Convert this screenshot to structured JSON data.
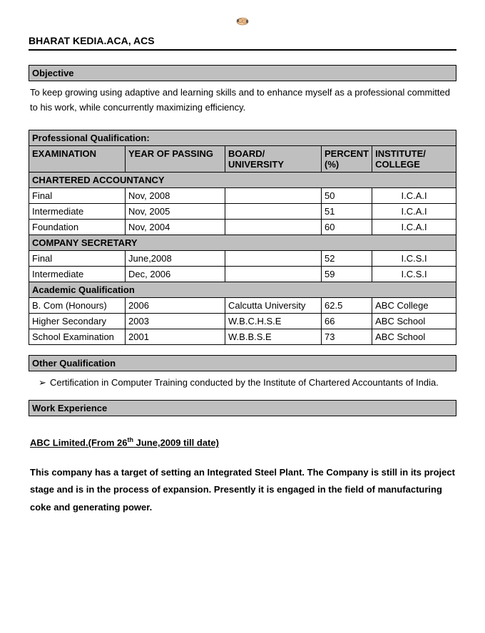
{
  "name": "BHARAT KEDIA.ACA, ACS",
  "sections": {
    "objective_label": "Objective",
    "objective_text": "To keep growing using adaptive and learning skills and to enhance myself as a professional committed to his work, while concurrently maximizing efficiency.",
    "prof_qual_label": "Professional Qualification:",
    "headers": {
      "exam": "EXAMINATION",
      "year": "YEAR OF PASSING",
      "board": "BOARD/ UNIVERSITY",
      "percent": "PERCENT (%)",
      "institute": "INSTITUTE/ COLLEGE"
    },
    "group_ca": "CHARTERED ACCOUNTANCY",
    "ca_rows": [
      {
        "exam": "Final",
        "year": "Nov, 2008",
        "board": "",
        "pct": "50",
        "inst": "I.C.A.I"
      },
      {
        "exam": "Intermediate",
        "year": "Nov, 2005",
        "board": "",
        "pct": "51",
        "inst": "I.C.A.I"
      },
      {
        "exam": "Foundation",
        "year": "Nov, 2004",
        "board": "",
        "pct": "60",
        "inst": "I.C.A.I"
      }
    ],
    "group_cs": "COMPANY SECRETARY",
    "cs_rows": [
      {
        "exam": "Final",
        "year": "June,2008",
        "board": "",
        "pct": "52",
        "inst": "I.C.S.I"
      },
      {
        "exam": "Intermediate",
        "year": "Dec, 2006",
        "board": "",
        "pct": "59",
        "inst": "I.C.S.I"
      }
    ],
    "group_ac": "Academic Qualification",
    "ac_rows": [
      {
        "exam": "B. Com (Honours)",
        "year": "2006",
        "board": "Calcutta University",
        "pct": "62.5",
        "inst": "ABC College"
      },
      {
        "exam": "Higher Secondary",
        "year": "2003",
        "board": "W.B.C.H.S.E",
        "pct": "66",
        "inst": "ABC School"
      },
      {
        "exam": "School Examination",
        "year": "2001",
        "board": "W.B.B.S.E",
        "pct": "73",
        "inst": "ABC School"
      }
    ],
    "other_qual_label": "Other Qualification",
    "other_qual_bullet": "Certification in Computer Training conducted by the Institute of Chartered Accountants of India.",
    "work_exp_label": "Work Experience",
    "work_sub_prefix": "ABC Limited.(From 26",
    "work_sub_sup": "th",
    "work_sub_suffix": " June,2009 till date)",
    "work_desc": "This company has a target of setting an Integrated Steel Plant. The Company is still in its project stage and is in the process of expansion. Presently it is engaged in the field of manufacturing coke and generating power."
  },
  "colors": {
    "header_bg": "#bfbfbf",
    "border": "#000000",
    "text": "#000000",
    "page_bg": "#ffffff"
  }
}
